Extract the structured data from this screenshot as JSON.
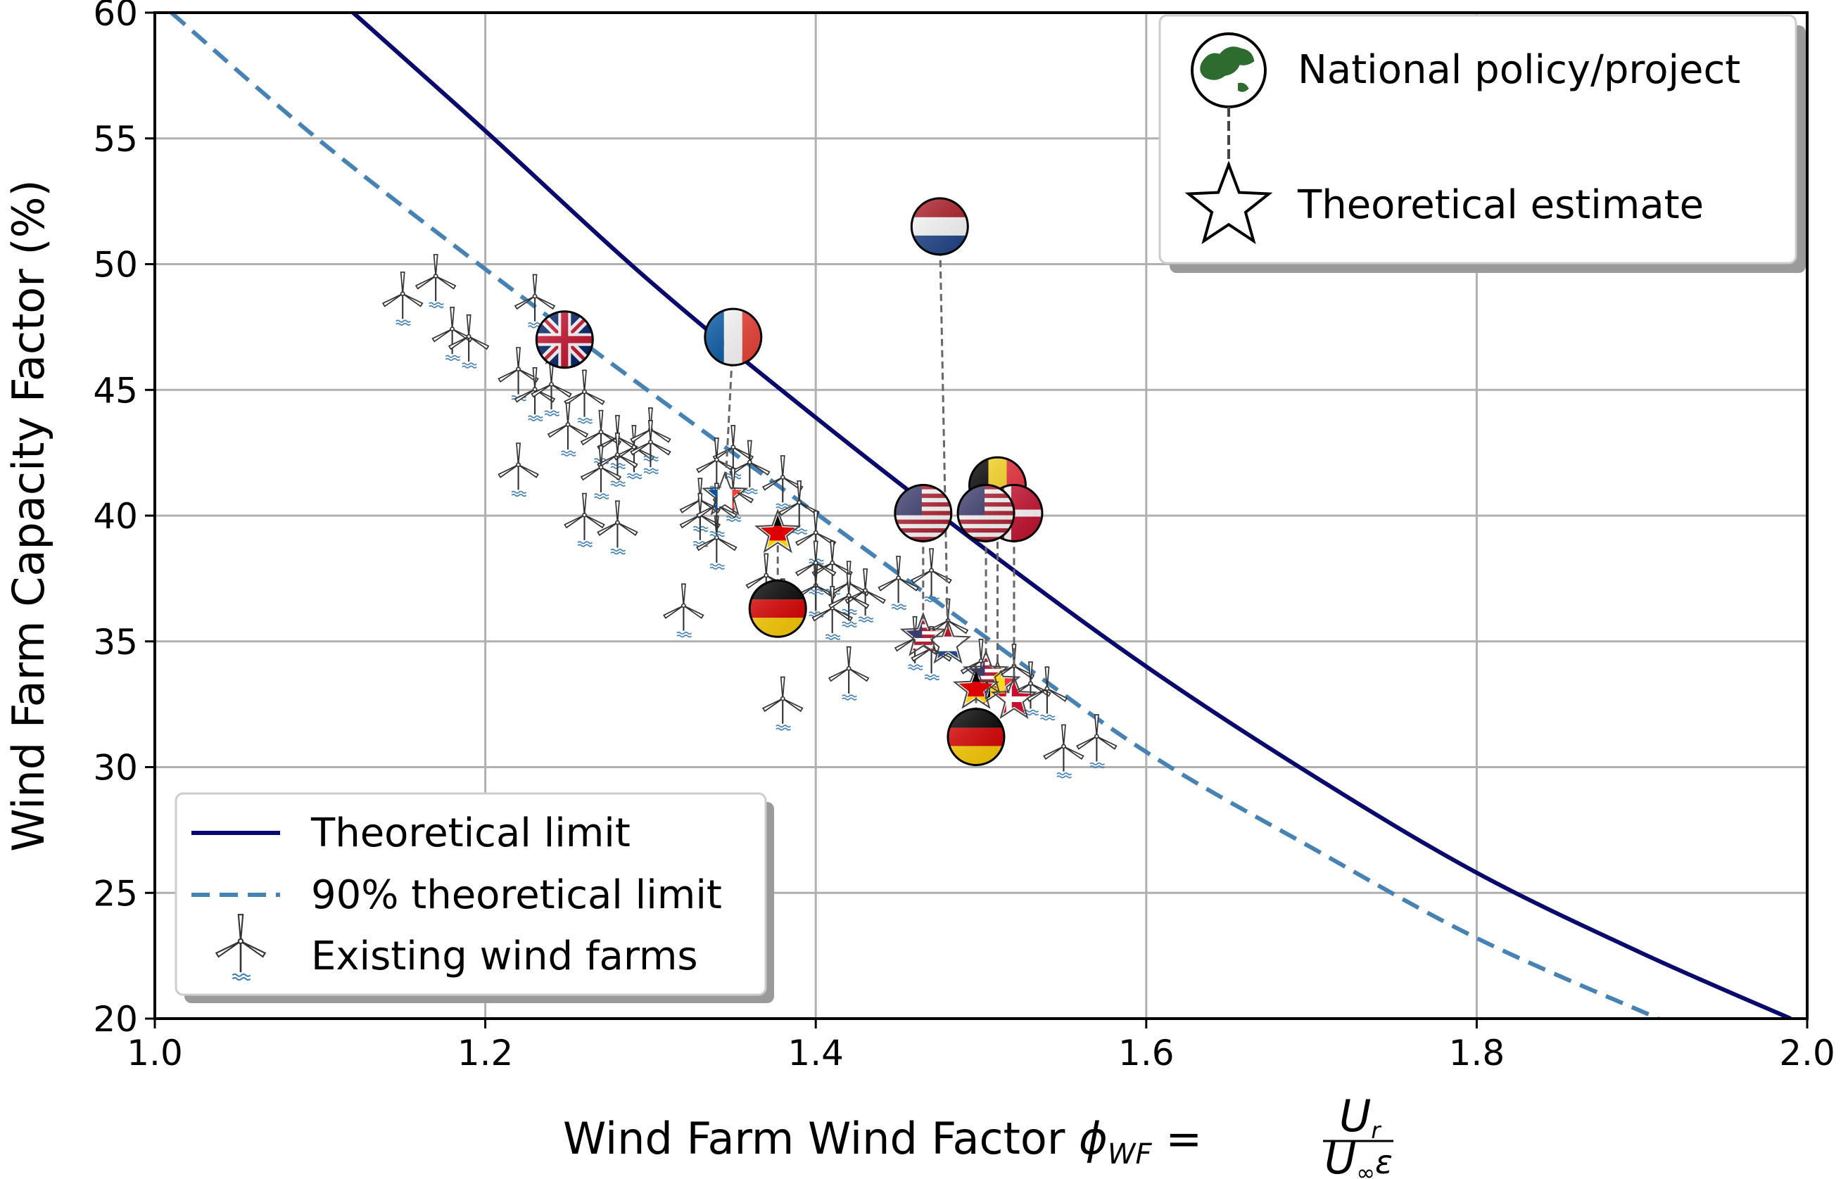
{
  "chart_data": {
    "type": "line",
    "title": "",
    "xlabel_prefix": "Wind Farm Wind Factor ",
    "xlabel_symbol": "ϕ",
    "xlabel_sub": "WF",
    "xlabel_eq": " = ",
    "xlabel_num": "U",
    "xlabel_num_sub": "r",
    "xlabel_den": "U",
    "xlabel_den_sub": "∞",
    "xlabel_den_eps": "ε",
    "ylabel": "Wind Farm Capacity Factor (%)",
    "xlim": [
      1.0,
      2.0
    ],
    "ylim": [
      20,
      60
    ],
    "grid": true,
    "xticks": [
      1.0,
      1.2,
      1.4,
      1.6,
      1.8,
      2.0
    ],
    "xtick_labels": [
      "1.0",
      "1.2",
      "1.4",
      "1.6",
      "1.8",
      "2.0"
    ],
    "yticks": [
      20,
      25,
      30,
      35,
      40,
      45,
      50,
      55,
      60
    ],
    "ytick_labels": [
      "20",
      "25",
      "30",
      "35",
      "40",
      "45",
      "50",
      "55",
      "60"
    ],
    "series": [
      {
        "name": "Theoretical limit",
        "color": "#0a0a6e",
        "style": "solid",
        "x": [
          1.12,
          1.2,
          1.3,
          1.4,
          1.5,
          1.6,
          1.7,
          1.8,
          1.9,
          1.99
        ],
        "y": [
          60,
          55.3,
          49.3,
          43.9,
          38.8,
          34.0,
          29.7,
          25.8,
          22.6,
          20
        ]
      },
      {
        "name": "90% theoretical limit",
        "color": "#4682b4",
        "style": "dashed",
        "x": [
          1.01,
          1.1,
          1.2,
          1.3,
          1.4,
          1.5,
          1.6,
          1.7,
          1.8,
          1.91
        ],
        "y": [
          60,
          54.9,
          49.8,
          44.9,
          40.1,
          35.3,
          30.6,
          26.8,
          23.2,
          20
        ]
      }
    ],
    "existing_wind_farms": {
      "name": "Existing wind farms",
      "x": [
        1.15,
        1.17,
        1.18,
        1.19,
        1.23,
        1.22,
        1.23,
        1.24,
        1.26,
        1.25,
        1.27,
        1.28,
        1.29,
        1.3,
        1.28,
        1.27,
        1.3,
        1.22,
        1.26,
        1.28,
        1.35,
        1.34,
        1.36,
        1.33,
        1.35,
        1.38,
        1.39,
        1.4,
        1.41,
        1.37,
        1.33,
        1.34,
        1.34,
        1.4,
        1.42,
        1.43,
        1.45,
        1.4,
        1.41,
        1.32,
        1.42,
        1.38,
        1.47,
        1.46,
        1.48,
        1.47,
        1.5,
        1.52,
        1.53,
        1.54,
        1.55,
        1.57,
        1.42,
        1.38
      ],
      "y": [
        48.6,
        49.3,
        47.2,
        46.9,
        48.5,
        45.6,
        44.8,
        45.0,
        44.7,
        43.4,
        43.1,
        42.9,
        42.5,
        43.2,
        42.2,
        41.7,
        42.7,
        41.8,
        39.8,
        39.5,
        42.5,
        42.0,
        41.9,
        40.4,
        40.8,
        41.3,
        40.3,
        39.1,
        37.9,
        37.4,
        39.8,
        38.9,
        40.2,
        37.0,
        37.1,
        36.8,
        37.3,
        37.9,
        36.1,
        36.2,
        36.6,
        36.4,
        37.6,
        34.9,
        35.6,
        34.5,
        34.0,
        33.8,
        33.1,
        32.9,
        30.6,
        31.0,
        33.7,
        32.5
      ]
    },
    "national_policy": [
      {
        "country": "Netherlands",
        "flag": "nl",
        "x": 1.475,
        "y": 51.5,
        "estimate_x": 1.48,
        "estimate_y": 34.9
      },
      {
        "country": "France",
        "flag": "fr",
        "x": 1.35,
        "y": 47.1,
        "estimate_x": 1.345,
        "estimate_y": 40.8
      },
      {
        "country": "United Kingdom",
        "flag": "uk",
        "x": 1.248,
        "y": 47.0,
        "estimate_x": 1.245,
        "estimate_y": 46.8
      },
      {
        "country": "Belgium",
        "flag": "be",
        "x": 1.51,
        "y": 41.2,
        "estimate_x": 1.51,
        "estimate_y": 33.3
      },
      {
        "country": "Denmark",
        "flag": "dk",
        "x": 1.52,
        "y": 40.1,
        "estimate_x": 1.52,
        "estimate_y": 32.7
      },
      {
        "country": "United States",
        "flag": "us",
        "x": 1.465,
        "y": 40.1,
        "estimate_x": 1.465,
        "estimate_y": 35.2
      },
      {
        "country": "United States",
        "flag": "us",
        "x": 1.503,
        "y": 40.1,
        "estimate_x": 1.503,
        "estimate_y": 33.7
      },
      {
        "country": "Germany",
        "flag": "de",
        "x": 1.377,
        "y": 36.3,
        "estimate_x": 1.377,
        "estimate_y": 39.3
      },
      {
        "country": "Germany",
        "flag": "de",
        "x": 1.497,
        "y": 31.2,
        "estimate_x": 1.497,
        "estimate_y": 33.1
      }
    ],
    "legend_lower_left": {
      "placement": "lower-left",
      "entries": [
        "Theoretical limit",
        "90% theoretical limit",
        "Existing wind farms"
      ]
    },
    "legend_upper_right": {
      "placement": "upper-right",
      "entries": [
        "National policy/project",
        "Theoretical estimate"
      ]
    }
  }
}
